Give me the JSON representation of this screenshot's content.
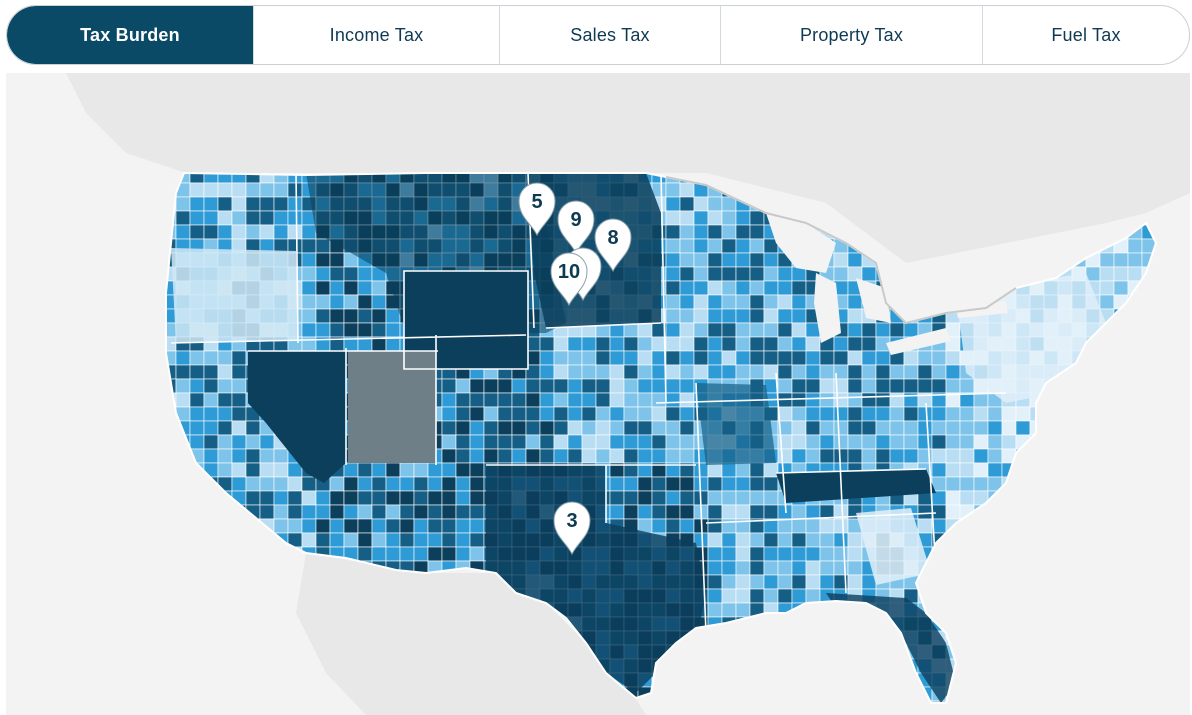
{
  "tabs": [
    {
      "label": "Tax Burden",
      "active": true
    },
    {
      "label": "Income Tax",
      "active": false
    },
    {
      "label": "Sales Tax",
      "active": false
    },
    {
      "label": "Property Tax",
      "active": false
    },
    {
      "label": "Fuel Tax",
      "active": false
    }
  ],
  "map": {
    "markers": [
      "5",
      "9",
      "8",
      "10",
      "3"
    ],
    "colors": {
      "darkest": "#0b3f5c",
      "dark": "#155f86",
      "mid": "#2e9bd6",
      "light": "#7ec4ea",
      "lighter": "#b9ddf2",
      "lightest": "#e2f0f9",
      "highlight": "#6f7f88",
      "land": "#e6e6e6",
      "water": "#f3f3f3"
    }
  }
}
